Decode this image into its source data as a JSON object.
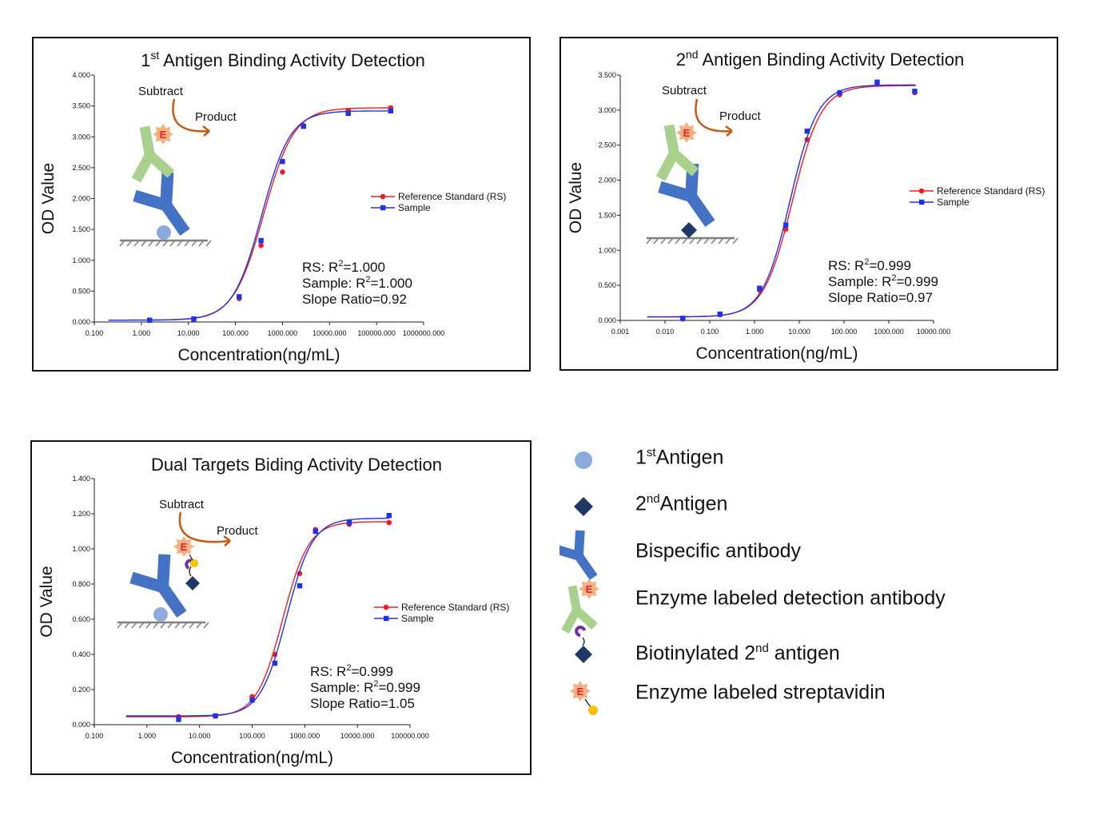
{
  "colors": {
    "rs": "#ee1c24",
    "sample": "#1f33e6",
    "bispecific": "#4472c4",
    "detection": "#a9d18e",
    "antigen1": "#8eaadb",
    "antigen2": "#203864",
    "enzyme": "#f4b183",
    "enzyme_text": "#ee1c24",
    "arrow": "#c55a11",
    "biotin": "#7030a0",
    "streptavidin_dot": "#ffc000"
  },
  "chart_data": [
    {
      "type": "line",
      "title_prefix": "1",
      "title_sup": "st",
      "title_suffix": " Antigen Binding Activity Detection",
      "xlabel": "Concentration(ng/mL)",
      "ylabel": "OD Value",
      "xscale": "log",
      "xlim": [
        0.1,
        1000000
      ],
      "ylim": [
        0,
        4
      ],
      "xticks": [
        0.1,
        1,
        10,
        100,
        1000,
        10000,
        100000,
        1000000
      ],
      "xtick_labels": [
        "0.100",
        "1.000",
        "10.000",
        "100.000",
        "1000.000",
        "10000.000",
        "100000.000",
        "1000000.000"
      ],
      "yticks": [
        0,
        0.5,
        1,
        1.5,
        2,
        2.5,
        3,
        3.5,
        4
      ],
      "ytick_labels": [
        "0.000",
        "0.500",
        "1.000",
        "1.500",
        "2.000",
        "2.500",
        "3.000",
        "3.500",
        "4.000"
      ],
      "fit_range": [
        0.2,
        200000
      ],
      "series": [
        {
          "name": "Reference Standard (RS)",
          "marker": "circle",
          "x": [
            1.5,
            13,
            120,
            350,
            1000,
            2800,
            25000,
            200000
          ],
          "y": [
            0.03,
            0.05,
            0.38,
            1.24,
            2.43,
            3.18,
            3.43,
            3.47
          ],
          "fit": {
            "bottom": 0.03,
            "top": 3.47,
            "ec50": 400,
            "hill": 1.35
          }
        },
        {
          "name": "Sample",
          "marker": "square",
          "x": [
            1.5,
            13,
            120,
            350,
            1000,
            2800,
            25000,
            200000
          ],
          "y": [
            0.03,
            0.05,
            0.41,
            1.32,
            2.6,
            3.17,
            3.38,
            3.42
          ],
          "fit": {
            "bottom": 0.03,
            "top": 3.42,
            "ec50": 360,
            "hill": 1.42
          }
        }
      ],
      "stats": [
        "RS: R",
        "Sample: R",
        "Slope Ratio=0.92"
      ],
      "stat_values": [
        "=1.000",
        "=1.000"
      ],
      "inset_labels": {
        "substrate": "Subtract",
        "product": "Product",
        "enzyme": "E"
      }
    },
    {
      "type": "line",
      "title_prefix": "2",
      "title_sup": "nd",
      "title_suffix": " Antigen Binding Activity Detection",
      "xlabel": "Concentration(ng/mL)",
      "ylabel": "OD Value",
      "xscale": "log",
      "xlim": [
        0.001,
        10000
      ],
      "ylim": [
        0,
        3.5
      ],
      "xticks": [
        0.001,
        0.01,
        0.1,
        1,
        10,
        100,
        1000,
        10000
      ],
      "xtick_labels": [
        "0.001",
        "0.010",
        "0.100",
        "1.000",
        "10.000",
        "100.000",
        "1000.000",
        "10000.000"
      ],
      "yticks": [
        0,
        0.5,
        1,
        1.5,
        2,
        2.5,
        3,
        3.5
      ],
      "ytick_labels": [
        "0.000",
        "0.500",
        "1.000",
        "1.500",
        "2.000",
        "2.500",
        "3.000",
        "3.500"
      ],
      "fit_range": [
        0.004,
        4000
      ],
      "series": [
        {
          "name": "Reference Standard (RS)",
          "marker": "circle",
          "x": [
            0.025,
            0.17,
            1.3,
            5,
            15,
            80,
            550,
            3800
          ],
          "y": [
            0.02,
            0.08,
            0.43,
            1.3,
            2.58,
            3.22,
            3.38,
            3.25
          ],
          "fit": {
            "bottom": 0.05,
            "top": 3.35,
            "ec50": 7,
            "hill": 1.35
          }
        },
        {
          "name": "Sample",
          "marker": "square",
          "x": [
            0.025,
            0.17,
            1.3,
            5,
            15,
            80,
            550,
            3800
          ],
          "y": [
            0.03,
            0.09,
            0.46,
            1.36,
            2.7,
            3.25,
            3.4,
            3.27
          ],
          "fit": {
            "bottom": 0.05,
            "top": 3.36,
            "ec50": 6.2,
            "hill": 1.4
          }
        }
      ],
      "stats": [
        "RS: R",
        "Sample: R",
        "Slope Ratio=0.97"
      ],
      "stat_values": [
        "=0.999",
        "=0.999"
      ],
      "inset_labels": {
        "substrate": "Subtract",
        "product": "Product",
        "enzyme": "E"
      }
    },
    {
      "type": "line",
      "title_prefix": "Dual Targets Biding Activity Detection",
      "title_sup": "",
      "title_suffix": "",
      "xlabel": "Concentration(ng/mL)",
      "ylabel": "OD Value",
      "xscale": "log",
      "xlim": [
        0.1,
        100000
      ],
      "ylim": [
        0,
        1.4
      ],
      "xticks": [
        0.1,
        1,
        10,
        100,
        1000,
        10000,
        100000
      ],
      "xtick_labels": [
        "0.100",
        "1.000",
        "10.000",
        "100.000",
        "1000.000",
        "10000.000",
        "100000.000"
      ],
      "yticks": [
        0,
        0.2,
        0.4,
        0.6,
        0.8,
        1,
        1.2,
        1.4
      ],
      "ytick_labels": [
        "0.000",
        "0.200",
        "0.400",
        "0.600",
        "0.800",
        "1.000",
        "1.200",
        "1.400"
      ],
      "fit_range": [
        0.4,
        40000
      ],
      "series": [
        {
          "name": "Reference Standard (RS)",
          "marker": "circle",
          "x": [
            4,
            20,
            100,
            270,
            800,
            1600,
            7000,
            40000
          ],
          "y": [
            0.045,
            0.05,
            0.16,
            0.4,
            0.86,
            1.11,
            1.14,
            1.15
          ],
          "fit": {
            "bottom": 0.045,
            "top": 1.155,
            "ec50": 380,
            "hill": 1.75
          }
        },
        {
          "name": "Sample",
          "marker": "square",
          "x": [
            4,
            20,
            100,
            270,
            800,
            1600,
            7000,
            40000
          ],
          "y": [
            0.03,
            0.05,
            0.14,
            0.35,
            0.79,
            1.1,
            1.15,
            1.19
          ],
          "fit": {
            "bottom": 0.05,
            "top": 1.175,
            "ec50": 450,
            "hill": 1.75
          }
        }
      ],
      "stats": [
        "RS: R",
        "Sample: R",
        "Slope Ratio=1.05"
      ],
      "stat_values": [
        "=0.999",
        "=0.999"
      ],
      "inset_labels": {
        "substrate": "Subtract",
        "product": "Product",
        "enzyme": "E"
      }
    }
  ],
  "legend": {
    "items": [
      {
        "icon": "antigen1-circle-icon",
        "prefix": "1",
        "sup": "st",
        "suffix": "Antigen"
      },
      {
        "icon": "antigen2-diamond-icon",
        "prefix": "2",
        "sup": "nd",
        "suffix": "Antigen"
      },
      {
        "icon": "bispecific-antibody-icon",
        "prefix": "Bispecific antibody",
        "sup": "",
        "suffix": ""
      },
      {
        "icon": "enzyme-detection-antibody-icon",
        "prefix": "Enzyme labeled detection antibody",
        "sup": "",
        "suffix": ""
      },
      {
        "icon": "biotinylated-antigen-icon",
        "prefix": "Biotinylated 2",
        "sup": "nd",
        "suffix": " antigen"
      },
      {
        "icon": "enzyme-streptavidin-icon",
        "prefix": "Enzyme labeled streptavidin",
        "sup": "",
        "suffix": ""
      }
    ]
  }
}
